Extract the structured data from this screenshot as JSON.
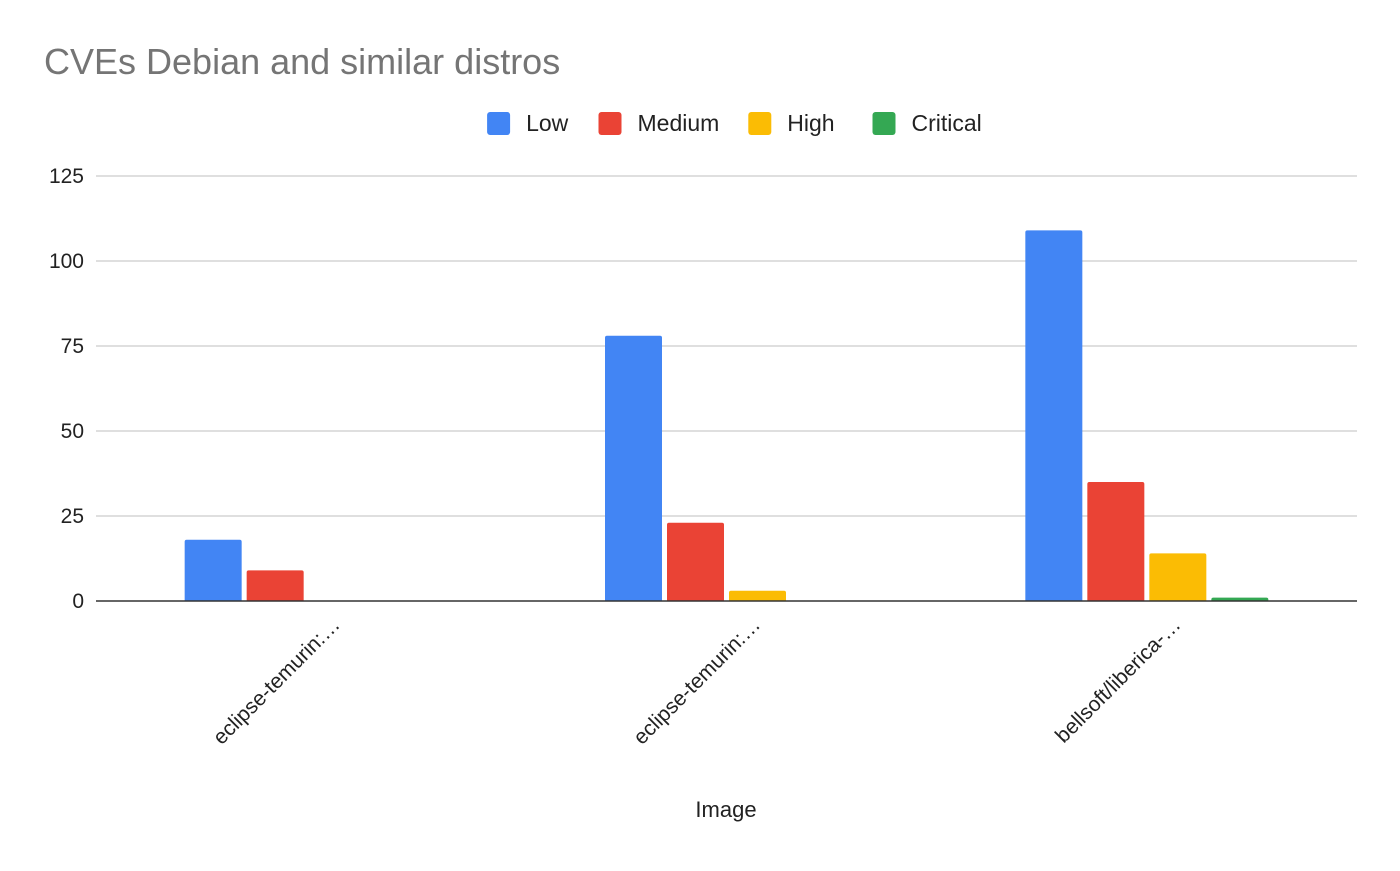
{
  "chart_data": {
    "type": "bar",
    "title": "CVEs Debian and similar distros",
    "xlabel": "Image",
    "ylabel": "",
    "categories": [
      "eclipse-temurin:…",
      "eclipse-temurin:…",
      "bellsoft/liberica-…"
    ],
    "series": [
      {
        "name": "Low",
        "color": "#4285F4",
        "values": [
          18,
          78,
          109
        ]
      },
      {
        "name": "Medium",
        "color": "#EA4335",
        "values": [
          9,
          23,
          35
        ]
      },
      {
        "name": "High",
        "color": "#FBBC04",
        "values": [
          0,
          3,
          14
        ]
      },
      {
        "name": "Critical",
        "color": "#34A853",
        "values": [
          0,
          0,
          1
        ]
      }
    ],
    "ylim": [
      0,
      125
    ],
    "yticks": [
      0,
      25,
      50,
      75,
      100,
      125
    ],
    "grid": true,
    "legend_position": "top"
  }
}
